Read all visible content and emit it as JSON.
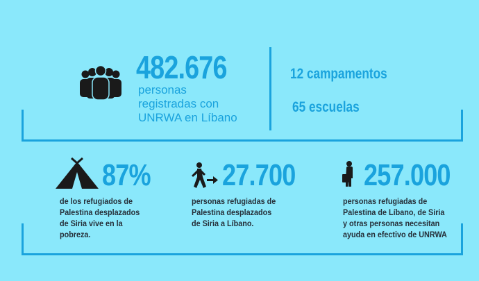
{
  "top": {
    "registered_count": "482.676",
    "registered_text": [
      "personas",
      "registradas con",
      "UNRWA en Líbano"
    ],
    "camps": "12 campamentos",
    "schools": "65 escuelas"
  },
  "stats": [
    {
      "icon": "tent-icon",
      "value": "87%",
      "text": [
        "de los refugiados de",
        "Palestina desplazados",
        "de Siria vive en la",
        "pobreza."
      ]
    },
    {
      "icon": "walking-person-icon",
      "value": "27.700",
      "text": [
        "personas refugiadas de",
        "Palestina desplazados",
        "de Siria a Líbano."
      ]
    },
    {
      "icon": "person-with-bag-icon",
      "value": "257.000",
      "text": [
        "personas refugiadas de",
        "Palestina de Líbano, de Siria",
        "y otras personas necesitan",
        "ayuda en efectivo de UNRWA"
      ]
    }
  ],
  "colors": {
    "background": "#8ae8fb",
    "accent": "#1aa3dd",
    "text_dark": "#26303a"
  }
}
